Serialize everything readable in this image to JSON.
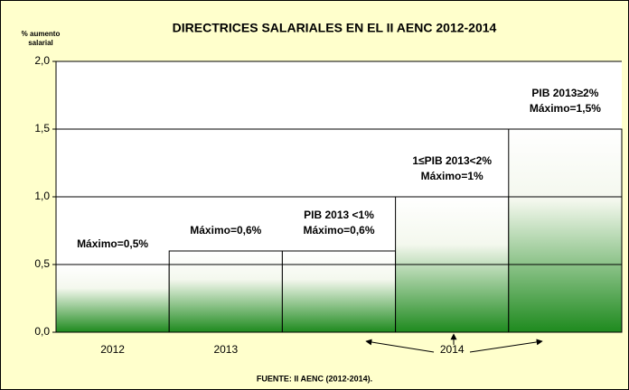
{
  "chart_data": {
    "type": "bar",
    "title": "DIRECTRICES SALARIALES EN EL II AENC 2012-2014",
    "y_label": [
      "% aumento",
      "salarial"
    ],
    "source": "FUENTE: II AENC (2012-2014).",
    "categories": [
      "2012",
      "2013",
      null,
      "2014",
      null
    ],
    "values": [
      0.5,
      0.6,
      0.6,
      1.0,
      1.5
    ],
    "value_labels": [
      [
        "Máximo=0,5%"
      ],
      [
        "Máximo=0,6%"
      ],
      [
        "PIB 2013 <1%",
        "Máximo=0,6%"
      ],
      [
        "1≤PIB 2013<2%",
        "Máximo=1%"
      ],
      [
        "PIB 2013≥2%",
        "Máximo=1,5%"
      ]
    ],
    "color": "#1e8a1e",
    "ylim": [
      0,
      2
    ],
    "yticks": [
      {
        "value": 0,
        "label": "0,0"
      },
      {
        "value": 0.5,
        "label": "0,5"
      },
      {
        "value": 1,
        "label": "1,0"
      },
      {
        "value": 1.5,
        "label": "1,5"
      },
      {
        "value": 2,
        "label": "2,0"
      }
    ],
    "grid": true
  }
}
